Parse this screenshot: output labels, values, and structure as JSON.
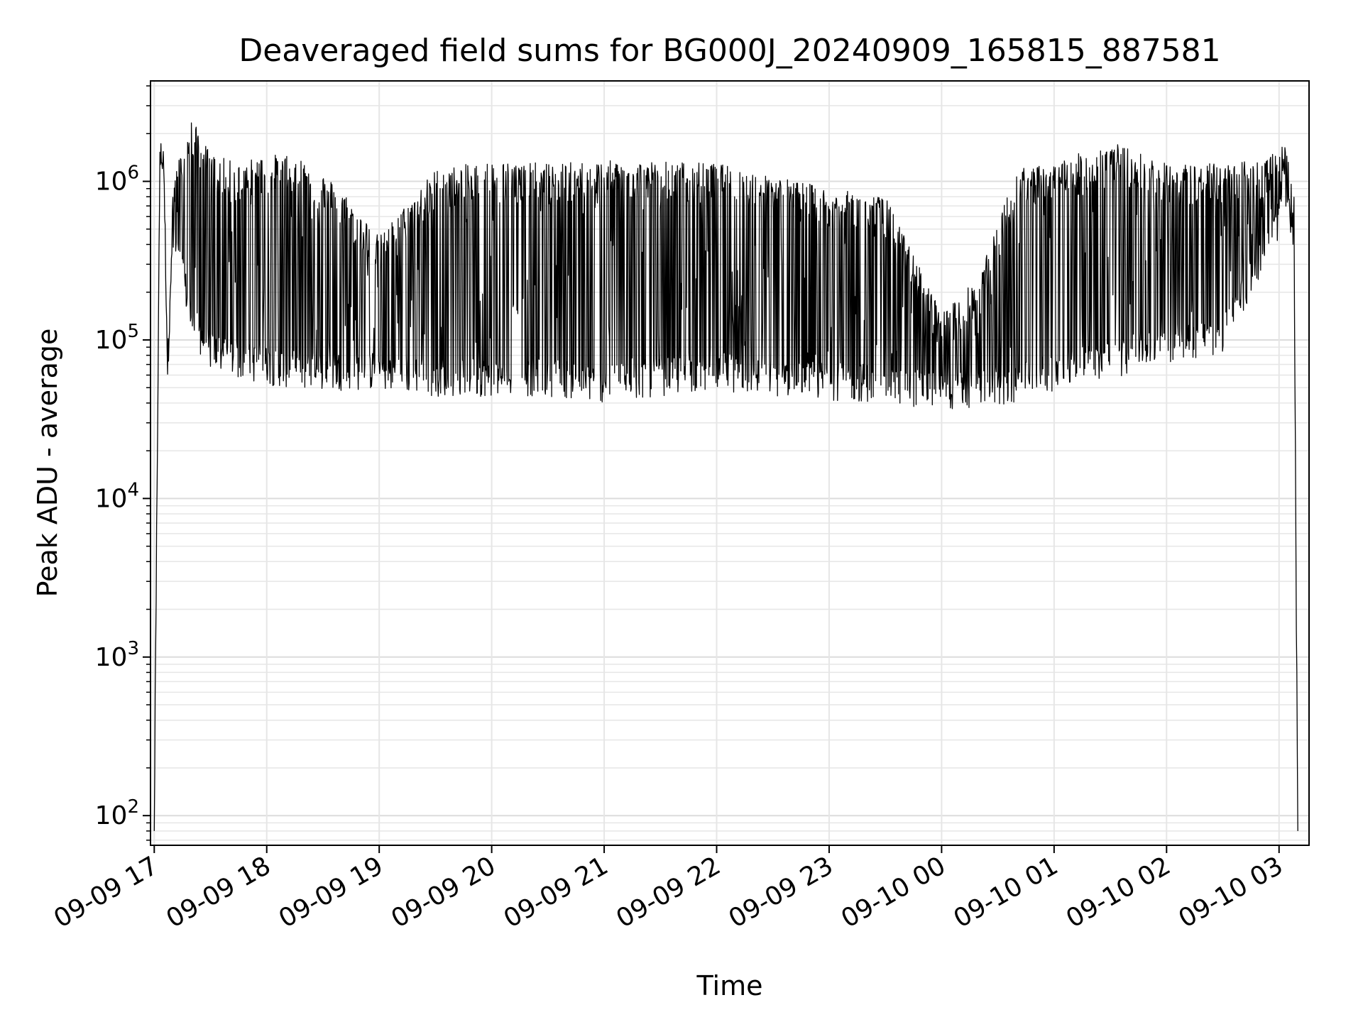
{
  "chart_data": {
    "type": "line",
    "title": "Deaveraged field sums for BG000J_20240909_165815_887581",
    "xlabel": "Time",
    "ylabel": "Peak ADU - average",
    "yscale": "log",
    "ylim": [
      65,
      4300000
    ],
    "xlim": [
      "2024-09-09 16:58",
      "2024-09-10 03:16"
    ],
    "grid": true,
    "x_ticks": [
      {
        "label": "09-09 17",
        "t": "2024-09-09 17:00"
      },
      {
        "label": "09-09 18",
        "t": "2024-09-09 18:00"
      },
      {
        "label": "09-09 19",
        "t": "2024-09-09 19:00"
      },
      {
        "label": "09-09 20",
        "t": "2024-09-09 20:00"
      },
      {
        "label": "09-09 21",
        "t": "2024-09-09 21:00"
      },
      {
        "label": "09-09 22",
        "t": "2024-09-09 22:00"
      },
      {
        "label": "09-09 23",
        "t": "2024-09-09 23:00"
      },
      {
        "label": "09-10 00",
        "t": "2024-09-10 00:00"
      },
      {
        "label": "09-10 01",
        "t": "2024-09-10 01:00"
      },
      {
        "label": "09-10 02",
        "t": "2024-09-10 02:00"
      },
      {
        "label": "09-10 03",
        "t": "2024-09-10 03:00"
      }
    ],
    "y_ticks": [
      {
        "base": "10",
        "exp": "2",
        "value": 100
      },
      {
        "base": "10",
        "exp": "3",
        "value": 1000
      },
      {
        "base": "10",
        "exp": "4",
        "value": 10000
      },
      {
        "base": "10",
        "exp": "5",
        "value": 100000
      },
      {
        "base": "10",
        "exp": "6",
        "value": 1000000
      }
    ],
    "series": [
      {
        "color": "#000000",
        "x": [
          "2024-09-09 17:00",
          "2024-09-09 17:03",
          "2024-09-09 17:05",
          "2024-09-09 17:07",
          "2024-09-09 17:10",
          "2024-09-09 17:15",
          "2024-09-09 17:20",
          "2024-09-09 17:30",
          "2024-09-09 17:45",
          "2024-09-09 18:00",
          "2024-09-09 18:20",
          "2024-09-09 18:40",
          "2024-09-09 19:00",
          "2024-09-09 19:30",
          "2024-09-09 20:00",
          "2024-09-09 20:30",
          "2024-09-09 21:00",
          "2024-09-09 21:30",
          "2024-09-09 22:00",
          "2024-09-09 22:30",
          "2024-09-09 23:00",
          "2024-09-09 23:30",
          "2024-09-10 00:00",
          "2024-09-10 00:20",
          "2024-09-10 00:40",
          "2024-09-10 01:00",
          "2024-09-10 01:30",
          "2024-09-10 02:00",
          "2024-09-10 02:30",
          "2024-09-10 02:50",
          "2024-09-10 03:04",
          "2024-09-10 03:08",
          "2024-09-10 03:10"
        ],
        "upper": [
          80,
          1800000,
          1700000,
          75000,
          1100000,
          1600000,
          2500000,
          1500000,
          1300000,
          1500000,
          1400000,
          900000,
          450000,
          1200000,
          1350000,
          1300000,
          1350000,
          1350000,
          1300000,
          1100000,
          900000,
          800000,
          150000,
          250000,
          1200000,
          1300000,
          1800000,
          1300000,
          1300000,
          1400000,
          1700000,
          800000,
          80
        ],
        "lower": [
          80,
          1500000,
          1400000,
          75000,
          400000,
          250000,
          120000,
          80000,
          70000,
          65000,
          60000,
          60000,
          60000,
          55000,
          55000,
          55000,
          50000,
          55000,
          60000,
          55000,
          52000,
          50000,
          45000,
          45000,
          50000,
          60000,
          70000,
          90000,
          100000,
          300000,
          700000,
          300000,
          80
        ]
      }
    ]
  }
}
